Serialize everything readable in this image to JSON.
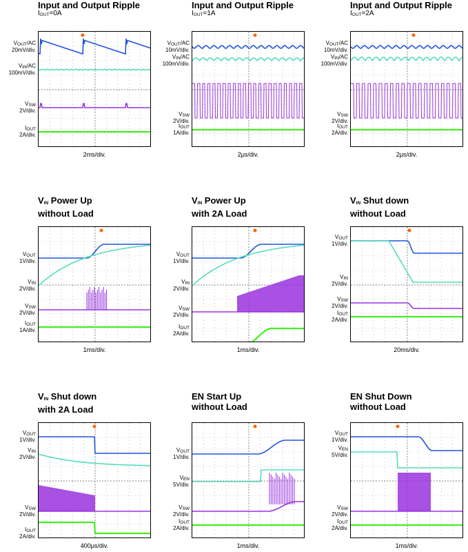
{
  "colors": {
    "vout": "#2255dd",
    "vin": "#55ddbb",
    "vsw": "#9933dd",
    "iout": "#44ee22",
    "grid": "#999999",
    "marker": "#ff6600"
  },
  "chart_data": [
    {
      "type": "line",
      "title_main": "Input and Output Ripple",
      "title_sub": "",
      "sub_sym": "I",
      "sub_idx": "OUT",
      "sub_val": "=0A",
      "timebase": "2ms/div.",
      "traces": [
        {
          "sym": "V",
          "sub": "OUT",
          "suffix": "/AC",
          "scale": "20mV/div."
        },
        {
          "sym": "V",
          "sub": "IN",
          "suffix": "/AC",
          "scale": "100mV/div."
        },
        {
          "sym": "V",
          "sub": "SW",
          "suffix": "",
          "scale": "2V/div."
        },
        {
          "sym": "I",
          "sub": "OUT",
          "suffix": "",
          "scale": "2A/div."
        }
      ]
    },
    {
      "type": "line",
      "title_main": "Input and Output Ripple",
      "title_sub": "",
      "sub_sym": "I",
      "sub_idx": "OUT",
      "sub_val": "=1A",
      "timebase": "2μs/div.",
      "traces": [
        {
          "sym": "V",
          "sub": "OUT",
          "suffix": "/AC",
          "scale": "10mV/div."
        },
        {
          "sym": "V",
          "sub": "IN",
          "suffix": "/AC",
          "scale": "100mV/div."
        },
        {
          "sym": "V",
          "sub": "SW",
          "suffix": "",
          "scale": "2V/div."
        },
        {
          "sym": "I",
          "sub": "OUT",
          "suffix": "",
          "scale": "1A/div."
        }
      ]
    },
    {
      "type": "line",
      "title_main": "Input and Output Ripple",
      "title_sub": "",
      "sub_sym": "I",
      "sub_idx": "OUT",
      "sub_val": "=2A",
      "timebase": "2μs/div.",
      "traces": [
        {
          "sym": "V",
          "sub": "OUT",
          "suffix": "/AC",
          "scale": "10mV/div."
        },
        {
          "sym": "V",
          "sub": "IN",
          "suffix": "/AC",
          "scale": "100mV/div."
        },
        {
          "sym": "V",
          "sub": "SW",
          "suffix": "",
          "scale": "2V/div."
        },
        {
          "sym": "I",
          "sub": "OUT",
          "suffix": "",
          "scale": "2A/div."
        }
      ]
    },
    {
      "type": "line",
      "title_sym": "V",
      "title_idx": "IN",
      "title_rest": " Power Up",
      "title_line2": "without Load",
      "timebase": "1ms/div.",
      "traces": [
        {
          "sym": "V",
          "sub": "OUT",
          "suffix": "",
          "scale": "1V/div."
        },
        {
          "sym": "V",
          "sub": "IN",
          "suffix": "",
          "scale": "2V/div."
        },
        {
          "sym": "V",
          "sub": "SW",
          "suffix": "",
          "scale": "2V/div."
        },
        {
          "sym": "I",
          "sub": "OUT",
          "suffix": "",
          "scale": "1A/div."
        }
      ]
    },
    {
      "type": "line",
      "title_sym": "V",
      "title_idx": "IN",
      "title_rest": " Power Up",
      "title_line2": "with 2A Load",
      "timebase": "1ms/div.",
      "traces": [
        {
          "sym": "V",
          "sub": "OUT",
          "suffix": "",
          "scale": "1V/div."
        },
        {
          "sym": "V",
          "sub": "IN",
          "suffix": "",
          "scale": "2V/div."
        },
        {
          "sym": "V",
          "sub": "SW",
          "suffix": "",
          "scale": "2V/div."
        },
        {
          "sym": "I",
          "sub": "OUT",
          "suffix": "",
          "scale": "2A/div."
        }
      ]
    },
    {
      "type": "line",
      "title_sym": "V",
      "title_idx": "IN",
      "title_rest": " Shut down",
      "title_line2": "without Load",
      "timebase": "20ms/div.",
      "traces": [
        {
          "sym": "V",
          "sub": "OUT",
          "suffix": "",
          "scale": "1V/div."
        },
        {
          "sym": "V",
          "sub": "IN",
          "suffix": "",
          "scale": "2V/div."
        },
        {
          "sym": "V",
          "sub": "SW",
          "suffix": "",
          "scale": "2V/div."
        },
        {
          "sym": "I",
          "sub": "OUT",
          "suffix": "",
          "scale": "2A/div."
        }
      ]
    },
    {
      "type": "line",
      "title_sym": "V",
      "title_idx": "IN",
      "title_rest": " Shut down",
      "title_line2": "with 2A Load",
      "timebase": "400μs/div.",
      "traces": [
        {
          "sym": "V",
          "sub": "OUT",
          "suffix": "",
          "scale": "1V/div."
        },
        {
          "sym": "V",
          "sub": "IN",
          "suffix": "",
          "scale": "2V/div."
        },
        {
          "sym": "V",
          "sub": "SW",
          "suffix": "",
          "scale": "2V/div."
        },
        {
          "sym": "I",
          "sub": "OUT",
          "suffix": "",
          "scale": "2A/div."
        }
      ]
    },
    {
      "type": "line",
      "title_main": "EN Start Up",
      "title_line2": "without Load",
      "timebase": "1ms/div.",
      "traces": [
        {
          "sym": "V",
          "sub": "OUT",
          "suffix": "",
          "scale": "1V/div."
        },
        {
          "sym": "V",
          "sub": "EN",
          "suffix": "",
          "scale": "5V/div."
        },
        {
          "sym": "V",
          "sub": "SW",
          "suffix": "",
          "scale": "2V/div."
        },
        {
          "sym": "I",
          "sub": "OUT",
          "suffix": "",
          "scale": "2A/div."
        }
      ]
    },
    {
      "type": "line",
      "title_main": "EN Shut Down",
      "title_line2": "without Load",
      "timebase": "1ms/div.",
      "traces": [
        {
          "sym": "V",
          "sub": "OUT",
          "suffix": "",
          "scale": "1V/div."
        },
        {
          "sym": "V",
          "sub": "EN",
          "suffix": "",
          "scale": "5V/div."
        },
        {
          "sym": "V",
          "sub": "SW",
          "suffix": "",
          "scale": "2V/div."
        },
        {
          "sym": "I",
          "sub": "OUT",
          "suffix": "",
          "scale": "2A/div."
        }
      ]
    }
  ]
}
